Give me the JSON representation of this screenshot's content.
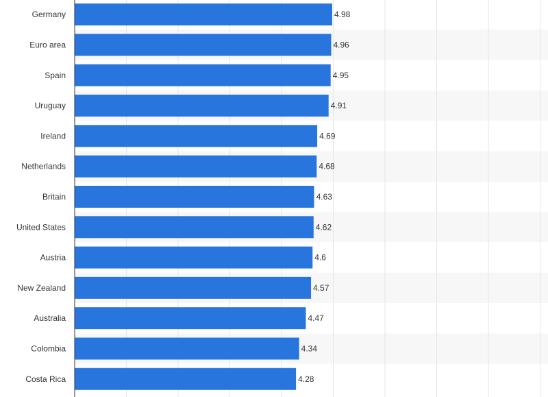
{
  "chart_data": {
    "type": "bar",
    "orientation": "horizontal",
    "categories": [
      "Germany",
      "Euro area",
      "Spain",
      "Uruguay",
      "Ireland",
      "Netherlands",
      "Britain",
      "United States",
      "Austria",
      "New Zealand",
      "Australia",
      "Colombia",
      "Costa Rica"
    ],
    "values": [
      4.98,
      4.96,
      4.95,
      4.91,
      4.69,
      4.68,
      4.63,
      4.62,
      4.6,
      4.57,
      4.47,
      4.34,
      4.28
    ],
    "value_labels": [
      "4.98",
      "4.96",
      "4.95",
      "4.91",
      "4.69",
      "4.68",
      "4.63",
      "4.62",
      "4.6",
      "4.57",
      "4.47",
      "4.34",
      "4.28"
    ],
    "xlim": [
      0,
      9
    ],
    "x_gridlines": [
      0,
      1,
      2,
      3,
      4,
      5,
      6,
      7,
      8,
      9
    ],
    "grid": true,
    "bar_color": "#2876dd",
    "stripe_color": "#f7f7f7"
  }
}
